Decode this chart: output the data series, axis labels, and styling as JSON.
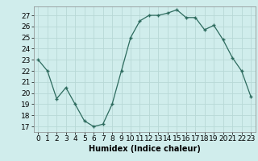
{
  "x": [
    0,
    1,
    2,
    3,
    4,
    5,
    6,
    7,
    8,
    9,
    10,
    11,
    12,
    13,
    14,
    15,
    16,
    17,
    18,
    19,
    20,
    21,
    22,
    23
  ],
  "y": [
    23,
    22,
    19.5,
    20.5,
    19,
    17.5,
    17,
    17.2,
    19,
    22,
    25,
    26.5,
    27,
    27,
    27.2,
    27.5,
    26.8,
    26.8,
    25.7,
    26.1,
    24.8,
    23.2,
    22,
    19.7
  ],
  "line_color": "#2d6b5e",
  "marker": "+",
  "bg_color": "#d0edec",
  "grid_color": "#b8d8d6",
  "xlabel": "Humidex (Indice chaleur)",
  "ylabel_ticks": [
    17,
    18,
    19,
    20,
    21,
    22,
    23,
    24,
    25,
    26,
    27
  ],
  "ylim": [
    16.5,
    27.8
  ],
  "xlim": [
    -0.5,
    23.5
  ],
  "label_fontsize": 7,
  "tick_fontsize": 6.5
}
